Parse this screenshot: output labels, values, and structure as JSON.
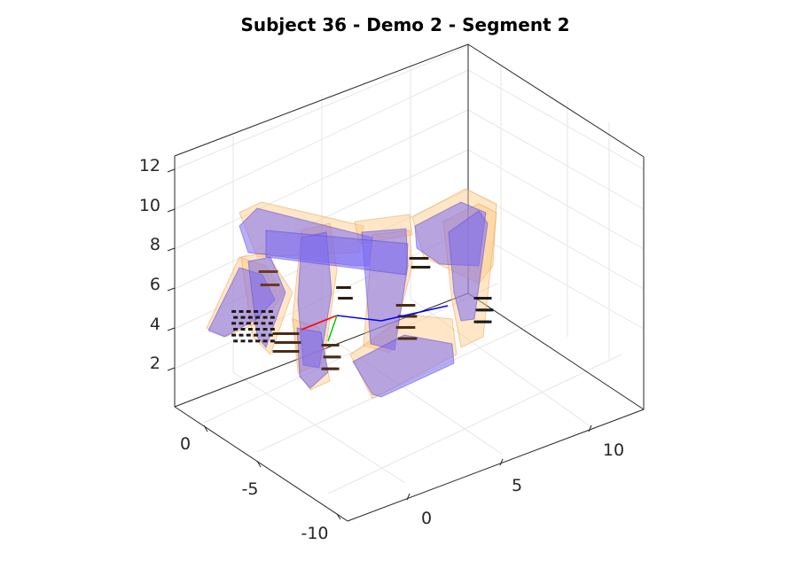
{
  "chart_data": {
    "type": "3d-scene",
    "title": "Subject 36 - Demo 2 - Segment 2",
    "xlabel": "",
    "ylabel": "",
    "zlabel": "",
    "x_ticks": [
      "0",
      "5",
      "10"
    ],
    "y_ticks": [
      "0",
      "-5",
      "-10"
    ],
    "z_ticks": [
      "2",
      "4",
      "6",
      "8",
      "10",
      "12"
    ],
    "grid": true,
    "box": true,
    "colors": {
      "hand_box": "#7b6cf0",
      "envelope_box": "#ffc880",
      "point_cloud": "#4a2c17",
      "axis_x": "#ff0000",
      "axis_y": "#00cc00",
      "axis_z": "#0000ff"
    }
  }
}
